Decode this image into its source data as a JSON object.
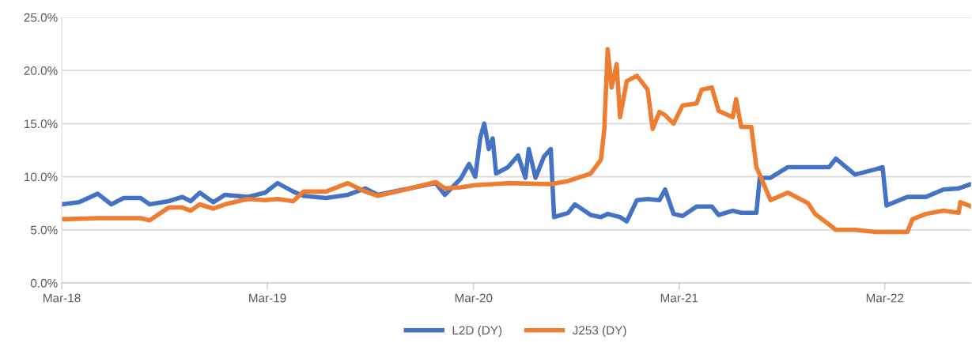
{
  "chart_data": {
    "type": "line",
    "xlim": [
      "2018-03-01",
      "2022-08-01"
    ],
    "xticks": [
      {
        "value": "2018-03-01",
        "label": "Mar-18"
      },
      {
        "value": "2019-03-01",
        "label": "Mar-19"
      },
      {
        "value": "2020-03-01",
        "label": "Mar-20"
      },
      {
        "value": "2021-03-01",
        "label": "Mar-21"
      },
      {
        "value": "2022-03-01",
        "label": "Mar-22"
      }
    ],
    "ylim": [
      0,
      25
    ],
    "yticks": [
      {
        "value": 0,
        "label": "0.0%"
      },
      {
        "value": 5,
        "label": "5.0%"
      },
      {
        "value": 10,
        "label": "10.0%"
      },
      {
        "value": 15,
        "label": "15.0%"
      },
      {
        "value": 20,
        "label": "20.0%"
      },
      {
        "value": 25,
        "label": "25.0%"
      }
    ],
    "grid": "y",
    "legend": "bottom",
    "marker": "none",
    "line_style": "solid",
    "series": [
      {
        "name": "L2D (DY)",
        "color": "#4472c4",
        "x": [
          "2018-03-01",
          "2018-04-01",
          "2018-05-04",
          "2018-05-28",
          "2018-06-19",
          "2018-07-19",
          "2018-08-04",
          "2018-09-07",
          "2018-10-01",
          "2018-10-16",
          "2018-11-01",
          "2018-11-25",
          "2018-12-16",
          "2019-01-25",
          "2019-02-25",
          "2019-03-19",
          "2019-04-16",
          "2019-05-04",
          "2019-06-13",
          "2019-07-22",
          "2019-08-22",
          "2019-09-13",
          "2019-12-25",
          "2020-01-10",
          "2020-02-07",
          "2020-02-22",
          "2020-03-04",
          "2020-03-13",
          "2020-03-20",
          "2020-03-28",
          "2020-04-04",
          "2020-04-10",
          "2020-05-01",
          "2020-05-19",
          "2020-06-01",
          "2020-06-07",
          "2020-06-19",
          "2020-07-04",
          "2020-07-16",
          "2020-07-22",
          "2020-08-16",
          "2020-08-28",
          "2020-09-25",
          "2020-10-13",
          "2020-10-25",
          "2020-11-16",
          "2020-11-28",
          "2020-12-16",
          "2021-01-04",
          "2021-01-25",
          "2021-02-04",
          "2021-02-19",
          "2021-03-07",
          "2021-04-01",
          "2021-04-28",
          "2021-05-10",
          "2021-06-04",
          "2021-06-19",
          "2021-07-16",
          "2021-07-22",
          "2021-08-10",
          "2021-09-10",
          "2021-10-16",
          "2021-11-22",
          "2021-12-04",
          "2022-01-07",
          "2022-02-13",
          "2022-02-25",
          "2022-03-04",
          "2022-04-10",
          "2022-05-13",
          "2022-06-13",
          "2022-07-10",
          "2022-08-01"
        ],
        "values": [
          7.4,
          7.6,
          8.4,
          7.4,
          8.0,
          8.0,
          7.4,
          7.7,
          8.1,
          7.7,
          8.5,
          7.6,
          8.3,
          8.1,
          8.5,
          9.4,
          8.6,
          8.2,
          8.0,
          8.3,
          8.9,
          8.3,
          9.4,
          8.3,
          9.8,
          11.2,
          10.0,
          13.7,
          15.0,
          12.6,
          13.6,
          10.3,
          10.9,
          12.0,
          9.9,
          12.6,
          9.9,
          11.9,
          12.6,
          6.2,
          6.6,
          7.4,
          6.4,
          6.2,
          6.5,
          6.2,
          5.8,
          7.8,
          7.9,
          7.8,
          8.8,
          6.5,
          6.3,
          7.2,
          7.2,
          6.4,
          6.8,
          6.6,
          6.6,
          9.9,
          9.9,
          10.9,
          10.9,
          10.9,
          11.7,
          10.2,
          10.7,
          10.9,
          7.3,
          8.1,
          8.1,
          8.8,
          8.9,
          9.3
        ]
      },
      {
        "name": "J253 (DY)",
        "color": "#ed7d31",
        "x": [
          "2018-03-01",
          "2018-05-04",
          "2018-07-19",
          "2018-08-04",
          "2018-09-07",
          "2018-10-01",
          "2018-10-16",
          "2018-11-01",
          "2018-11-25",
          "2018-12-16",
          "2019-01-25",
          "2019-02-25",
          "2019-03-19",
          "2019-04-16",
          "2019-05-04",
          "2019-06-13",
          "2019-07-22",
          "2019-08-22",
          "2019-09-13",
          "2019-11-01",
          "2019-12-25",
          "2020-01-10",
          "2020-02-07",
          "2020-03-04",
          "2020-05-01",
          "2020-07-16",
          "2020-08-16",
          "2020-09-25",
          "2020-10-13",
          "2020-10-19",
          "2020-10-25",
          "2020-11-01",
          "2020-11-10",
          "2020-11-16",
          "2020-11-28",
          "2020-12-16",
          "2021-01-04",
          "2021-01-13",
          "2021-01-25",
          "2021-02-04",
          "2021-02-19",
          "2021-03-07",
          "2021-04-01",
          "2021-04-10",
          "2021-04-28",
          "2021-05-10",
          "2021-06-04",
          "2021-06-10",
          "2021-06-19",
          "2021-07-07",
          "2021-07-16",
          "2021-07-22",
          "2021-08-10",
          "2021-09-10",
          "2021-10-16",
          "2021-10-28",
          "2021-11-22",
          "2021-12-04",
          "2022-01-07",
          "2022-02-13",
          "2022-04-10",
          "2022-04-19",
          "2022-05-13",
          "2022-06-13",
          "2022-07-10",
          "2022-07-13",
          "2022-08-01"
        ],
        "values": [
          6.0,
          6.1,
          6.1,
          5.9,
          7.1,
          7.1,
          6.8,
          7.4,
          7.0,
          7.4,
          7.9,
          7.8,
          7.9,
          7.7,
          8.6,
          8.6,
          9.4,
          8.6,
          8.2,
          8.8,
          9.5,
          8.9,
          9.0,
          9.2,
          9.4,
          9.3,
          9.6,
          10.3,
          11.6,
          14.4,
          22.0,
          18.4,
          20.6,
          15.6,
          19.0,
          19.5,
          18.2,
          14.5,
          16.1,
          15.8,
          15.0,
          16.7,
          16.9,
          18.2,
          18.4,
          16.2,
          15.6,
          17.3,
          14.7,
          14.7,
          10.9,
          10.2,
          7.8,
          8.5,
          7.5,
          6.5,
          5.5,
          5.0,
          5.0,
          4.8,
          4.8,
          6.0,
          6.5,
          6.8,
          6.6,
          7.6,
          7.2
        ]
      }
    ]
  }
}
